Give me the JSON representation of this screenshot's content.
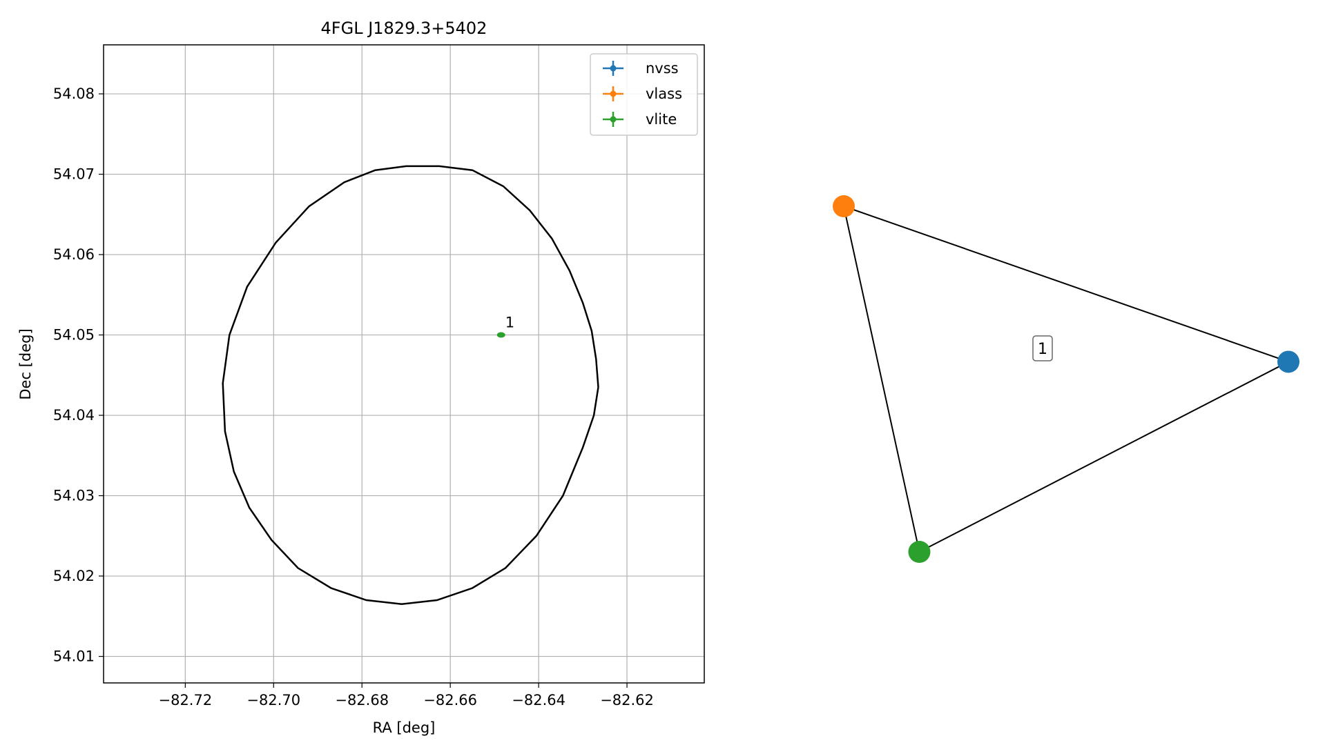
{
  "chart_data": [
    {
      "type": "scatter",
      "title": "4FGL J1829.3+5402",
      "xlabel": "RA [deg]",
      "ylabel": "Dec [deg]",
      "xlim": [
        -82.7385,
        -82.6025
      ],
      "ylim": [
        54.0067,
        54.0861
      ],
      "xticks": [
        -82.72,
        -82.7,
        -82.68,
        -82.66,
        -82.64,
        -82.62
      ],
      "xtick_labels": [
        "−82.72",
        "−82.70",
        "−82.68",
        "−82.66",
        "−82.64",
        "−82.62"
      ],
      "yticks": [
        54.01,
        54.02,
        54.03,
        54.04,
        54.05,
        54.06,
        54.07,
        54.08
      ],
      "ytick_labels": [
        "54.01",
        "54.02",
        "54.03",
        "54.04",
        "54.05",
        "54.06",
        "54.07",
        "54.08"
      ],
      "grid": true,
      "legend_position": "top-right",
      "series": [
        {
          "name": "nvss",
          "color": "#1f77b4",
          "points": []
        },
        {
          "name": "vlass",
          "color": "#ff7f0e",
          "points": []
        },
        {
          "name": "vlite",
          "color": "#2ca02c",
          "points": [
            {
              "x": -82.6485,
              "y": 54.05,
              "label": "1"
            }
          ]
        }
      ],
      "ellipse": {
        "color": "#000000",
        "points": [
          [
            -82.6265,
            54.0435
          ],
          [
            -82.627,
            54.047
          ],
          [
            -82.628,
            54.0505
          ],
          [
            -82.63,
            54.054
          ],
          [
            -82.633,
            54.058
          ],
          [
            -82.637,
            54.062
          ],
          [
            -82.642,
            54.0655
          ],
          [
            -82.648,
            54.0685
          ],
          [
            -82.655,
            54.0705
          ],
          [
            -82.6625,
            54.071
          ],
          [
            -82.67,
            54.071
          ],
          [
            -82.677,
            54.0705
          ],
          [
            -82.684,
            54.069
          ],
          [
            -82.692,
            54.066
          ],
          [
            -82.6995,
            54.0615
          ],
          [
            -82.706,
            54.056
          ],
          [
            -82.71,
            54.05
          ],
          [
            -82.7115,
            54.044
          ],
          [
            -82.711,
            54.038
          ],
          [
            -82.709,
            54.033
          ],
          [
            -82.7055,
            54.0285
          ],
          [
            -82.7005,
            54.0245
          ],
          [
            -82.6945,
            54.021
          ],
          [
            -82.687,
            54.0185
          ],
          [
            -82.679,
            54.017
          ],
          [
            -82.671,
            54.0165
          ],
          [
            -82.663,
            54.017
          ],
          [
            -82.655,
            54.0185
          ],
          [
            -82.6475,
            54.021
          ],
          [
            -82.6405,
            54.025
          ],
          [
            -82.6345,
            54.03
          ],
          [
            -82.63,
            54.036
          ],
          [
            -82.6275,
            54.04
          ],
          [
            -82.6265,
            54.0435
          ]
        ]
      }
    },
    {
      "type": "graph",
      "nodes": [
        {
          "name": "nvss",
          "color": "#1f77b4",
          "x": 1.0,
          "y": 0.55
        },
        {
          "name": "vlass",
          "color": "#ff7f0e",
          "x": 0.0,
          "y": 1.0
        },
        {
          "name": "vlite",
          "color": "#2ca02c",
          "x": 0.17,
          "y": 0.0
        }
      ],
      "edges": [
        {
          "source": "vlass",
          "target": "nvss"
        },
        {
          "source": "vlass",
          "target": "vlite"
        },
        {
          "source": "vlite",
          "target": "nvss"
        }
      ],
      "center_label": "1"
    }
  ]
}
